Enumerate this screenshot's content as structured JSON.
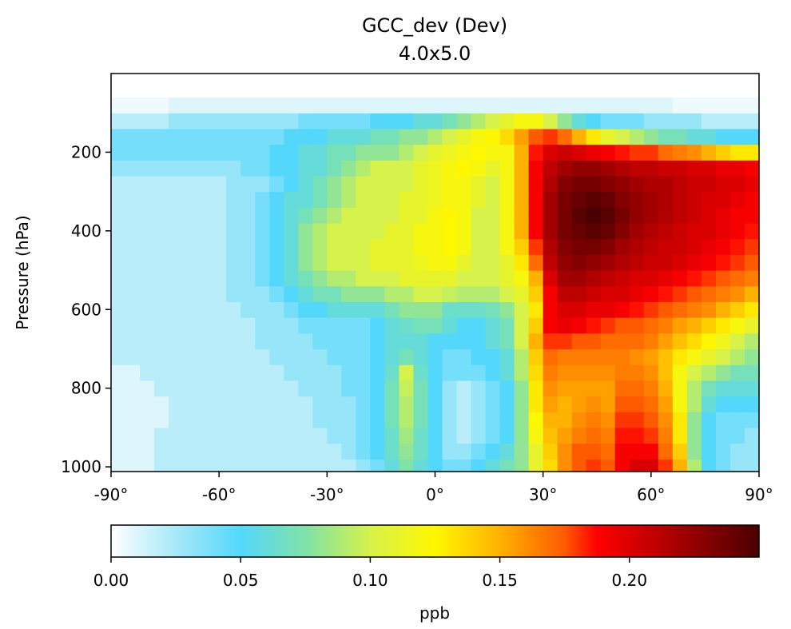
{
  "chart_data": {
    "type": "heatmap",
    "title": "GCC_dev (Dev)",
    "subtitle": "4.0x5.0",
    "xlabel": "",
    "ylabel": "Pressure (hPa)",
    "x_ticks": [
      {
        "value": -90,
        "label": "-90°"
      },
      {
        "value": -60,
        "label": "-60°"
      },
      {
        "value": -30,
        "label": "-30°"
      },
      {
        "value": 0,
        "label": "0°"
      },
      {
        "value": 30,
        "label": "30°"
      },
      {
        "value": 60,
        "label": "60°"
      },
      {
        "value": 90,
        "label": "90°"
      }
    ],
    "y_ticks": [
      {
        "value": 200,
        "label": "200"
      },
      {
        "value": 400,
        "label": "400"
      },
      {
        "value": 600,
        "label": "600"
      },
      {
        "value": 800,
        "label": "800"
      },
      {
        "value": 1000,
        "label": "1000"
      }
    ],
    "xlim": [
      -90,
      90
    ],
    "ylim": [
      1012,
      0
    ],
    "grid": false,
    "x": [
      -88,
      -84,
      -80,
      -76,
      -72,
      -68,
      -64,
      -60,
      -56,
      -52,
      -48,
      -44,
      -40,
      -36,
      -32,
      -28,
      -24,
      -20,
      -16,
      -12,
      -8,
      -4,
      0,
      4,
      8,
      12,
      16,
      20,
      24,
      28,
      32,
      36,
      40,
      44,
      48,
      52,
      56,
      60,
      64,
      68,
      72,
      76,
      80,
      84,
      88
    ],
    "y": [
      1000,
      960,
      920,
      880,
      840,
      800,
      760,
      720,
      680,
      640,
      600,
      560,
      520,
      480,
      440,
      400,
      360,
      320,
      280,
      240,
      200,
      160,
      120,
      80,
      40
    ],
    "z": [
      [
        0.01,
        0.01,
        0.01,
        0.02,
        0.02,
        0.02,
        0.02,
        0.02,
        0.02,
        0.02,
        0.02,
        0.02,
        0.02,
        0.02,
        0.02,
        0.02,
        0.02,
        0.03,
        0.04,
        0.06,
        0.075,
        0.06,
        0.05,
        0.04,
        0.04,
        0.05,
        0.06,
        0.07,
        0.08,
        0.11,
        0.135,
        0.16,
        0.175,
        0.18,
        0.175,
        0.19,
        0.2,
        0.2,
        0.18,
        0.15,
        0.09,
        0.05,
        0.04,
        0.03,
        0.03
      ],
      [
        0.01,
        0.01,
        0.01,
        0.02,
        0.02,
        0.02,
        0.02,
        0.02,
        0.02,
        0.02,
        0.02,
        0.02,
        0.02,
        0.02,
        0.02,
        0.02,
        0.03,
        0.04,
        0.05,
        0.065,
        0.08,
        0.065,
        0.05,
        0.03,
        0.03,
        0.04,
        0.05,
        0.06,
        0.08,
        0.11,
        0.14,
        0.16,
        0.175,
        0.175,
        0.17,
        0.19,
        0.19,
        0.19,
        0.17,
        0.14,
        0.08,
        0.05,
        0.04,
        0.03,
        0.03
      ],
      [
        0.01,
        0.01,
        0.01,
        0.02,
        0.02,
        0.02,
        0.02,
        0.02,
        0.02,
        0.02,
        0.02,
        0.02,
        0.02,
        0.02,
        0.02,
        0.03,
        0.03,
        0.04,
        0.05,
        0.065,
        0.085,
        0.065,
        0.05,
        0.03,
        0.02,
        0.03,
        0.04,
        0.05,
        0.08,
        0.12,
        0.145,
        0.155,
        0.165,
        0.17,
        0.165,
        0.185,
        0.185,
        0.18,
        0.165,
        0.13,
        0.08,
        0.05,
        0.04,
        0.04,
        0.03
      ],
      [
        0.01,
        0.01,
        0.01,
        0.01,
        0.02,
        0.02,
        0.02,
        0.02,
        0.02,
        0.02,
        0.02,
        0.02,
        0.02,
        0.02,
        0.03,
        0.03,
        0.03,
        0.04,
        0.05,
        0.07,
        0.09,
        0.07,
        0.05,
        0.03,
        0.02,
        0.03,
        0.04,
        0.05,
        0.08,
        0.125,
        0.15,
        0.15,
        0.16,
        0.165,
        0.16,
        0.18,
        0.18,
        0.175,
        0.16,
        0.13,
        0.08,
        0.05,
        0.04,
        0.04,
        0.04
      ],
      [
        0.01,
        0.01,
        0.01,
        0.01,
        0.02,
        0.02,
        0.02,
        0.02,
        0.02,
        0.02,
        0.02,
        0.02,
        0.02,
        0.02,
        0.03,
        0.03,
        0.03,
        0.04,
        0.05,
        0.07,
        0.09,
        0.07,
        0.05,
        0.03,
        0.02,
        0.03,
        0.04,
        0.05,
        0.08,
        0.13,
        0.155,
        0.15,
        0.155,
        0.16,
        0.155,
        0.175,
        0.175,
        0.17,
        0.155,
        0.12,
        0.09,
        0.06,
        0.05,
        0.05,
        0.05
      ],
      [
        0.01,
        0.01,
        0.01,
        0.02,
        0.02,
        0.02,
        0.02,
        0.02,
        0.02,
        0.02,
        0.02,
        0.02,
        0.02,
        0.03,
        0.03,
        0.03,
        0.04,
        0.04,
        0.05,
        0.07,
        0.095,
        0.07,
        0.05,
        0.03,
        0.02,
        0.03,
        0.04,
        0.05,
        0.08,
        0.13,
        0.16,
        0.155,
        0.155,
        0.155,
        0.155,
        0.17,
        0.17,
        0.165,
        0.15,
        0.12,
        0.09,
        0.07,
        0.06,
        0.06,
        0.06
      ],
      [
        0.01,
        0.01,
        0.02,
        0.02,
        0.02,
        0.02,
        0.02,
        0.02,
        0.02,
        0.02,
        0.02,
        0.02,
        0.03,
        0.03,
        0.03,
        0.03,
        0.04,
        0.04,
        0.05,
        0.065,
        0.1,
        0.065,
        0.05,
        0.04,
        0.04,
        0.04,
        0.05,
        0.06,
        0.09,
        0.135,
        0.165,
        0.16,
        0.16,
        0.16,
        0.16,
        0.165,
        0.165,
        0.16,
        0.145,
        0.12,
        0.1,
        0.09,
        0.08,
        0.07,
        0.07
      ],
      [
        0.02,
        0.02,
        0.02,
        0.02,
        0.02,
        0.02,
        0.02,
        0.02,
        0.02,
        0.02,
        0.02,
        0.03,
        0.03,
        0.03,
        0.03,
        0.04,
        0.04,
        0.04,
        0.05,
        0.06,
        0.07,
        0.06,
        0.05,
        0.04,
        0.04,
        0.05,
        0.05,
        0.06,
        0.09,
        0.14,
        0.17,
        0.165,
        0.165,
        0.165,
        0.165,
        0.165,
        0.16,
        0.155,
        0.145,
        0.13,
        0.12,
        0.11,
        0.1,
        0.09,
        0.08
      ],
      [
        0.02,
        0.02,
        0.02,
        0.02,
        0.02,
        0.02,
        0.02,
        0.02,
        0.02,
        0.02,
        0.03,
        0.03,
        0.03,
        0.03,
        0.04,
        0.04,
        0.04,
        0.04,
        0.05,
        0.06,
        0.06,
        0.06,
        0.05,
        0.05,
        0.05,
        0.05,
        0.06,
        0.07,
        0.1,
        0.15,
        0.18,
        0.18,
        0.175,
        0.175,
        0.17,
        0.17,
        0.17,
        0.165,
        0.155,
        0.145,
        0.135,
        0.125,
        0.115,
        0.1,
        0.09
      ],
      [
        0.02,
        0.02,
        0.02,
        0.02,
        0.02,
        0.02,
        0.02,
        0.02,
        0.02,
        0.02,
        0.03,
        0.03,
        0.03,
        0.04,
        0.04,
        0.04,
        0.04,
        0.04,
        0.05,
        0.06,
        0.065,
        0.07,
        0.07,
        0.06,
        0.05,
        0.05,
        0.06,
        0.07,
        0.1,
        0.14,
        0.19,
        0.195,
        0.19,
        0.185,
        0.18,
        0.175,
        0.175,
        0.17,
        0.165,
        0.155,
        0.15,
        0.14,
        0.13,
        0.12,
        0.11
      ],
      [
        0.02,
        0.02,
        0.02,
        0.02,
        0.02,
        0.02,
        0.02,
        0.02,
        0.02,
        0.03,
        0.03,
        0.03,
        0.04,
        0.05,
        0.05,
        0.06,
        0.06,
        0.06,
        0.06,
        0.07,
        0.08,
        0.08,
        0.08,
        0.065,
        0.065,
        0.065,
        0.07,
        0.08,
        0.1,
        0.13,
        0.19,
        0.2,
        0.2,
        0.195,
        0.195,
        0.19,
        0.185,
        0.18,
        0.175,
        0.17,
        0.165,
        0.16,
        0.15,
        0.14,
        0.13
      ],
      [
        0.02,
        0.02,
        0.02,
        0.02,
        0.02,
        0.02,
        0.02,
        0.02,
        0.03,
        0.03,
        0.03,
        0.04,
        0.05,
        0.06,
        0.07,
        0.07,
        0.08,
        0.08,
        0.08,
        0.09,
        0.09,
        0.1,
        0.1,
        0.095,
        0.09,
        0.09,
        0.09,
        0.1,
        0.11,
        0.14,
        0.19,
        0.21,
        0.21,
        0.205,
        0.2,
        0.2,
        0.195,
        0.19,
        0.185,
        0.18,
        0.175,
        0.17,
        0.165,
        0.16,
        0.15
      ],
      [
        0.02,
        0.02,
        0.02,
        0.02,
        0.02,
        0.02,
        0.02,
        0.02,
        0.03,
        0.03,
        0.04,
        0.05,
        0.06,
        0.07,
        0.08,
        0.09,
        0.09,
        0.1,
        0.1,
        0.1,
        0.11,
        0.11,
        0.11,
        0.11,
        0.1,
        0.1,
        0.1,
        0.11,
        0.12,
        0.15,
        0.2,
        0.22,
        0.22,
        0.215,
        0.21,
        0.205,
        0.2,
        0.2,
        0.195,
        0.19,
        0.185,
        0.18,
        0.175,
        0.17,
        0.165
      ],
      [
        0.02,
        0.02,
        0.02,
        0.02,
        0.02,
        0.02,
        0.02,
        0.02,
        0.03,
        0.03,
        0.04,
        0.05,
        0.06,
        0.08,
        0.09,
        0.1,
        0.1,
        0.1,
        0.11,
        0.11,
        0.11,
        0.115,
        0.12,
        0.12,
        0.11,
        0.1,
        0.1,
        0.11,
        0.13,
        0.17,
        0.21,
        0.225,
        0.23,
        0.225,
        0.22,
        0.215,
        0.21,
        0.205,
        0.205,
        0.2,
        0.195,
        0.19,
        0.185,
        0.18,
        0.175
      ],
      [
        0.02,
        0.02,
        0.02,
        0.02,
        0.02,
        0.02,
        0.02,
        0.02,
        0.03,
        0.03,
        0.04,
        0.05,
        0.06,
        0.08,
        0.09,
        0.1,
        0.1,
        0.1,
        0.11,
        0.11,
        0.11,
        0.12,
        0.12,
        0.125,
        0.12,
        0.1,
        0.1,
        0.12,
        0.14,
        0.18,
        0.215,
        0.23,
        0.235,
        0.235,
        0.23,
        0.22,
        0.215,
        0.21,
        0.205,
        0.205,
        0.2,
        0.195,
        0.19,
        0.185,
        0.18
      ],
      [
        0.02,
        0.02,
        0.02,
        0.02,
        0.02,
        0.02,
        0.02,
        0.02,
        0.03,
        0.03,
        0.04,
        0.05,
        0.06,
        0.08,
        0.09,
        0.1,
        0.1,
        0.1,
        0.1,
        0.11,
        0.11,
        0.12,
        0.12,
        0.125,
        0.12,
        0.1,
        0.1,
        0.12,
        0.15,
        0.19,
        0.22,
        0.235,
        0.24,
        0.245,
        0.24,
        0.23,
        0.22,
        0.215,
        0.21,
        0.205,
        0.2,
        0.2,
        0.195,
        0.19,
        0.185
      ],
      [
        0.02,
        0.02,
        0.02,
        0.02,
        0.02,
        0.02,
        0.02,
        0.02,
        0.03,
        0.03,
        0.04,
        0.05,
        0.06,
        0.07,
        0.08,
        0.09,
        0.1,
        0.1,
        0.1,
        0.1,
        0.11,
        0.11,
        0.12,
        0.125,
        0.12,
        0.1,
        0.1,
        0.12,
        0.15,
        0.19,
        0.22,
        0.235,
        0.245,
        0.25,
        0.245,
        0.235,
        0.225,
        0.22,
        0.215,
        0.21,
        0.205,
        0.2,
        0.195,
        0.19,
        0.19
      ],
      [
        0.02,
        0.02,
        0.02,
        0.02,
        0.02,
        0.02,
        0.02,
        0.02,
        0.03,
        0.03,
        0.04,
        0.05,
        0.06,
        0.06,
        0.07,
        0.08,
        0.09,
        0.1,
        0.1,
        0.1,
        0.11,
        0.11,
        0.115,
        0.12,
        0.12,
        0.11,
        0.1,
        0.12,
        0.15,
        0.19,
        0.22,
        0.235,
        0.24,
        0.245,
        0.24,
        0.23,
        0.225,
        0.22,
        0.215,
        0.21,
        0.205,
        0.2,
        0.2,
        0.195,
        0.19
      ],
      [
        0.02,
        0.02,
        0.02,
        0.02,
        0.02,
        0.02,
        0.02,
        0.02,
        0.03,
        0.03,
        0.03,
        0.04,
        0.05,
        0.06,
        0.07,
        0.08,
        0.09,
        0.1,
        0.1,
        0.1,
        0.1,
        0.11,
        0.115,
        0.12,
        0.12,
        0.11,
        0.1,
        0.12,
        0.15,
        0.19,
        0.215,
        0.23,
        0.235,
        0.235,
        0.23,
        0.225,
        0.22,
        0.215,
        0.215,
        0.21,
        0.205,
        0.205,
        0.2,
        0.2,
        0.195
      ],
      [
        0.03,
        0.03,
        0.03,
        0.03,
        0.03,
        0.03,
        0.03,
        0.03,
        0.03,
        0.04,
        0.04,
        0.05,
        0.05,
        0.06,
        0.06,
        0.07,
        0.08,
        0.09,
        0.1,
        0.1,
        0.1,
        0.11,
        0.115,
        0.12,
        0.125,
        0.12,
        0.11,
        0.12,
        0.15,
        0.19,
        0.21,
        0.22,
        0.225,
        0.225,
        0.22,
        0.215,
        0.21,
        0.21,
        0.205,
        0.205,
        0.2,
        0.2,
        0.195,
        0.195,
        0.19
      ],
      [
        0.04,
        0.04,
        0.04,
        0.04,
        0.04,
        0.04,
        0.04,
        0.04,
        0.04,
        0.04,
        0.04,
        0.05,
        0.05,
        0.06,
        0.06,
        0.07,
        0.07,
        0.08,
        0.08,
        0.08,
        0.09,
        0.1,
        0.11,
        0.115,
        0.12,
        0.125,
        0.12,
        0.12,
        0.15,
        0.185,
        0.2,
        0.205,
        0.2,
        0.195,
        0.19,
        0.185,
        0.18,
        0.18,
        0.17,
        0.165,
        0.16,
        0.15,
        0.14,
        0.13,
        0.13
      ],
      [
        0.04,
        0.04,
        0.04,
        0.04,
        0.04,
        0.04,
        0.04,
        0.04,
        0.04,
        0.04,
        0.04,
        0.04,
        0.05,
        0.05,
        0.05,
        0.06,
        0.06,
        0.06,
        0.07,
        0.07,
        0.08,
        0.08,
        0.09,
        0.1,
        0.11,
        0.12,
        0.125,
        0.135,
        0.155,
        0.175,
        0.18,
        0.17,
        0.15,
        0.13,
        0.11,
        0.1,
        0.09,
        0.08,
        0.07,
        0.07,
        0.06,
        0.06,
        0.05,
        0.05,
        0.05
      ],
      [
        0.02,
        0.02,
        0.02,
        0.02,
        0.03,
        0.03,
        0.03,
        0.03,
        0.03,
        0.03,
        0.03,
        0.03,
        0.03,
        0.04,
        0.04,
        0.04,
        0.04,
        0.04,
        0.05,
        0.05,
        0.05,
        0.06,
        0.06,
        0.07,
        0.08,
        0.09,
        0.1,
        0.11,
        0.12,
        0.12,
        0.1,
        0.08,
        0.06,
        0.05,
        0.04,
        0.04,
        0.04,
        0.03,
        0.03,
        0.03,
        0.03,
        0.02,
        0.02,
        0.02,
        0.02
      ],
      [
        0.005,
        0.005,
        0.005,
        0.005,
        0.01,
        0.01,
        0.01,
        0.01,
        0.01,
        0.01,
        0.01,
        0.01,
        0.01,
        0.01,
        0.01,
        0.01,
        0.01,
        0.01,
        0.01,
        0.01,
        0.01,
        0.01,
        0.01,
        0.01,
        0.01,
        0.01,
        0.01,
        0.01,
        0.01,
        0.01,
        0.01,
        0.01,
        0.01,
        0.01,
        0.01,
        0.01,
        0.01,
        0.01,
        0.01,
        0.005,
        0.005,
        0.005,
        0.005,
        0.005,
        0.005
      ],
      [
        0,
        0,
        0,
        0,
        0,
        0,
        0,
        0,
        0,
        0,
        0,
        0,
        0,
        0,
        0,
        0,
        0,
        0,
        0,
        0,
        0,
        0,
        0,
        0,
        0,
        0,
        0,
        0,
        0,
        0,
        0,
        0,
        0,
        0,
        0,
        0,
        0,
        0,
        0,
        0,
        0,
        0,
        0,
        0,
        0
      ]
    ],
    "colorbar": {
      "label": "ppb",
      "min": 0,
      "max": 0.25,
      "ticks": [
        {
          "value": 0.0,
          "label": "0.00"
        },
        {
          "value": 0.05,
          "label": "0.05"
        },
        {
          "value": 0.1,
          "label": "0.10"
        },
        {
          "value": 0.15,
          "label": "0.15"
        },
        {
          "value": 0.2,
          "label": "0.20"
        }
      ],
      "colormap": [
        {
          "at": 0.0,
          "color": "#ffffff"
        },
        {
          "at": 0.1,
          "color": "#a8e8f8"
        },
        {
          "at": 0.2,
          "color": "#53d8fc"
        },
        {
          "at": 0.3,
          "color": "#7fe2a7"
        },
        {
          "at": 0.4,
          "color": "#d7f24a"
        },
        {
          "at": 0.5,
          "color": "#fff700"
        },
        {
          "at": 0.6,
          "color": "#ffb200"
        },
        {
          "at": 0.7,
          "color": "#ff5a00"
        },
        {
          "at": 0.75,
          "color": "#ff0000"
        },
        {
          "at": 0.85,
          "color": "#b80000"
        },
        {
          "at": 1.0,
          "color": "#4a0000"
        }
      ],
      "orientation": "horizontal"
    }
  }
}
